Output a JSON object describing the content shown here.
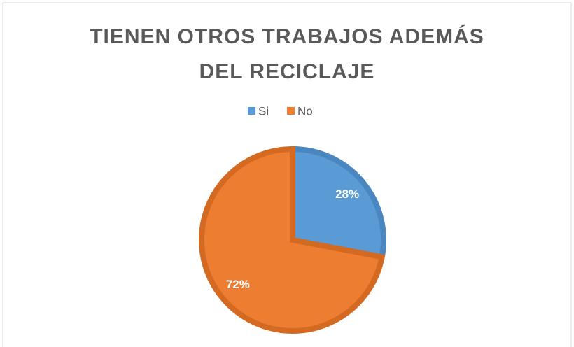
{
  "chart_data": {
    "type": "pie",
    "title": "TIENEN OTROS TRABAJOS ADEMÁS DEL RECICLAJE",
    "categories": [
      "Si",
      "No"
    ],
    "values": [
      28,
      72
    ],
    "value_labels": [
      "28%",
      "72%"
    ],
    "colors": [
      "#5b9bd5",
      "#ed7d31"
    ],
    "legend": "top"
  }
}
